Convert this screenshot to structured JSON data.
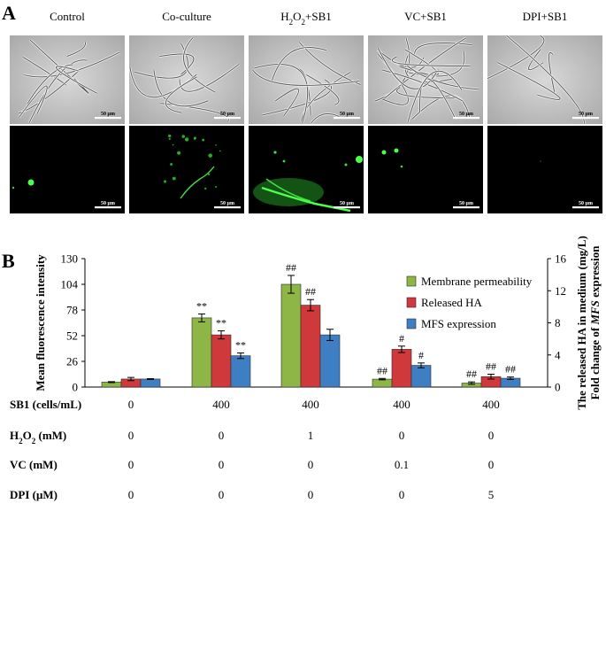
{
  "panel_a": {
    "letter": "A",
    "conditions": [
      {
        "label": "Control"
      },
      {
        "label": "Co-culture"
      },
      {
        "label_main": "H",
        "label_sub": "2",
        "label_mid": "O",
        "label_sub2": "2",
        "label_end": "+SB1"
      },
      {
        "label": "VC+SB1"
      },
      {
        "label": "DPI+SB1"
      }
    ],
    "scale_bar": "50 μm"
  },
  "chart_data": {
    "type": "bar",
    "panel_letter": "B",
    "categories": [
      "0",
      "400",
      "400",
      "400",
      "400"
    ],
    "left_axis": {
      "label": "Mean fluorescence intensity",
      "ylim": [
        0,
        130
      ],
      "ticks": [
        "0",
        "26",
        "52",
        "78",
        "104",
        "130"
      ]
    },
    "right_axis": {
      "label_line1": "The released HA in medium (mg/L)",
      "label_line2_prefix": "Fold change of ",
      "label_line2_italic": "MFS",
      "label_line2_suffix": " expression",
      "ylim": [
        0,
        16
      ],
      "ticks": [
        "0",
        "4",
        "8",
        "12",
        "16"
      ]
    },
    "series": [
      {
        "name": "Membrane permeability",
        "axis": "left",
        "color": "#8db646",
        "values": [
          5,
          70,
          104,
          8,
          4
        ],
        "errors": [
          0.5,
          4,
          9,
          0.7,
          1.2
        ],
        "labels": [
          "",
          "**",
          "##",
          "##",
          "##"
        ]
      },
      {
        "name": "Released HA",
        "axis": "right",
        "color": "#d0393b",
        "values": [
          1.0,
          6.5,
          10.2,
          4.7,
          1.3
        ],
        "errors": [
          0.2,
          0.5,
          0.7,
          0.4,
          0.3
        ],
        "labels": [
          "",
          "**",
          "##",
          "#",
          "##"
        ]
      },
      {
        "name": "MFS expression",
        "axis": "right",
        "color": "#3e7fc4",
        "values": [
          1.0,
          3.9,
          6.5,
          2.7,
          1.1
        ],
        "errors": [
          0.05,
          0.35,
          0.7,
          0.3,
          0.15
        ],
        "labels": [
          "",
          "**",
          "",
          "#",
          "##"
        ]
      }
    ],
    "legend_position": "top-right"
  },
  "table_rows": [
    {
      "label": "SB1 (cells/mL)",
      "values": [
        "0",
        "400",
        "400",
        "400",
        "400"
      ]
    },
    {
      "label_main": "H",
      "label_sub": "2",
      "label_mid": "O",
      "label_sub2": "2",
      "label_end": " (mM)",
      "values": [
        "0",
        "0",
        "1",
        "0",
        "0"
      ]
    },
    {
      "label": "VC (mM)",
      "values": [
        "0",
        "0",
        "0",
        "0.1",
        "0"
      ]
    },
    {
      "label": "DPI (μM)",
      "values": [
        "0",
        "0",
        "0",
        "0",
        "5"
      ]
    }
  ]
}
